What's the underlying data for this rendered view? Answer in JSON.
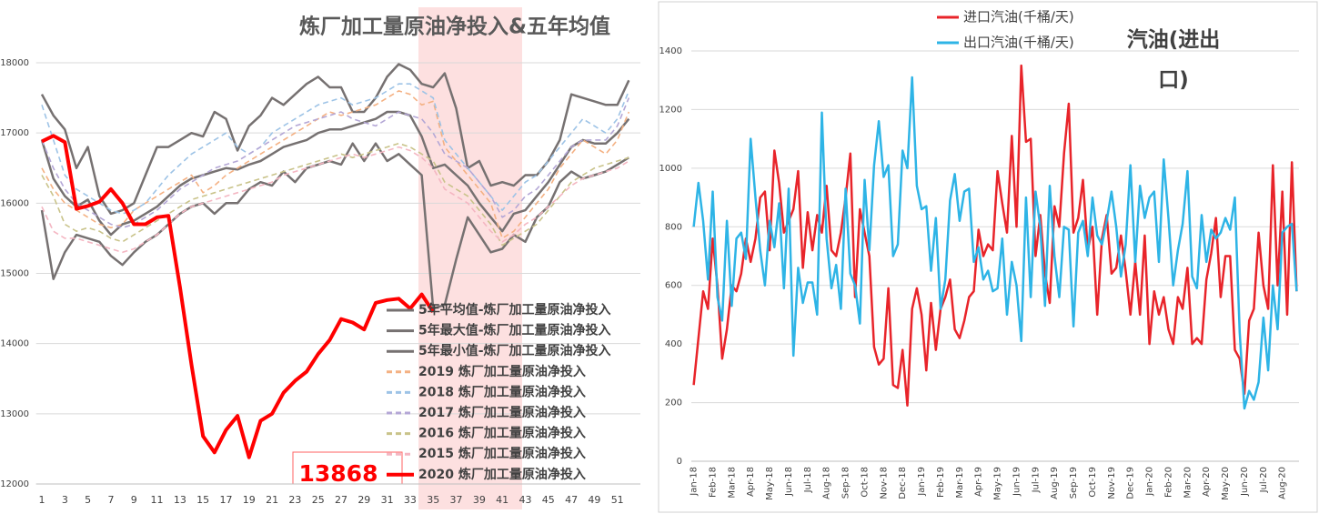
{
  "chart_data": [
    {
      "type": "line",
      "title": "炼厂加工量原油净投入&五年均值",
      "annotation": "13868",
      "x": [
        1,
        2,
        3,
        4,
        5,
        6,
        7,
        8,
        9,
        10,
        11,
        12,
        13,
        14,
        15,
        16,
        17,
        18,
        19,
        20,
        21,
        22,
        23,
        24,
        25,
        26,
        27,
        28,
        29,
        30,
        31,
        32,
        33,
        34,
        35,
        36,
        37,
        38,
        39,
        40,
        41,
        42,
        43,
        44,
        45,
        46,
        47,
        48,
        49,
        50,
        51,
        52
      ],
      "xlim": [
        0.5,
        53
      ],
      "xticks": [
        1,
        3,
        5,
        7,
        9,
        11,
        13,
        15,
        17,
        19,
        21,
        23,
        25,
        27,
        29,
        31,
        33,
        35,
        37,
        39,
        41,
        43,
        45,
        47,
        49,
        51
      ],
      "ylim": [
        12000,
        18000
      ],
      "yticks": [
        12000,
        13000,
        14000,
        15000,
        16000,
        17000,
        18000
      ],
      "grid": true,
      "series": [
        {
          "name": "5年平均值-炼厂加工量原油净投入",
          "color": "#767171",
          "style": "solid",
          "values": [
            16900,
            16350,
            16100,
            15950,
            16050,
            15750,
            15550,
            15700,
            15750,
            15850,
            15950,
            16100,
            16250,
            16350,
            16400,
            16450,
            16500,
            16480,
            16550,
            16600,
            16700,
            16800,
            16850,
            16900,
            17000,
            17050,
            17050,
            17100,
            17150,
            17200,
            17300,
            17300,
            17250,
            16950,
            16500,
            16550,
            16400,
            16250,
            16000,
            15800,
            15600,
            15850,
            15900,
            16100,
            16300,
            16550,
            16800,
            16900,
            16850,
            16850,
            17000,
            17200
          ]
        },
        {
          "name": "5年最大值-炼厂加工量原油净投入",
          "color": "#767171",
          "style": "solid",
          "values": [
            17550,
            17250,
            17050,
            16500,
            16800,
            16100,
            15850,
            15900,
            16000,
            16400,
            16800,
            16800,
            16900,
            17000,
            16950,
            17300,
            17200,
            16750,
            17100,
            17250,
            17500,
            17400,
            17550,
            17700,
            17800,
            17650,
            17650,
            17300,
            17300,
            17500,
            17800,
            17980,
            17900,
            17700,
            17650,
            17850,
            17350,
            16500,
            16600,
            16250,
            16300,
            16250,
            16400,
            16400,
            16600,
            16900,
            17550,
            17500,
            17450,
            17400,
            17400,
            17750
          ]
        },
        {
          "name": "5年最小值-炼厂加工量原油净投入",
          "color": "#767171",
          "style": "solid",
          "values": [
            15900,
            14920,
            15300,
            15550,
            15500,
            15450,
            15250,
            15120,
            15300,
            15450,
            15550,
            15700,
            15850,
            15950,
            16000,
            15850,
            16000,
            16000,
            16200,
            16300,
            16250,
            16450,
            16300,
            16500,
            16550,
            16600,
            16550,
            16850,
            16600,
            16850,
            16600,
            16700,
            16550,
            16400,
            14500,
            14550,
            15200,
            15800,
            15550,
            15300,
            15350,
            15550,
            15450,
            15800,
            15950,
            16300,
            16450,
            16350,
            16400,
            16450,
            16550,
            16650
          ]
        },
        {
          "name": "2019  炼厂加工量原油净投入",
          "color": "#f4b183",
          "style": "dashed",
          "values": [
            16500,
            16200,
            16000,
            15900,
            15800,
            15700,
            15650,
            15700,
            15900,
            16000,
            16100,
            16200,
            16300,
            16400,
            16150,
            16250,
            16400,
            16500,
            16600,
            16700,
            16800,
            16900,
            17000,
            17100,
            17200,
            17300,
            17250,
            17300,
            17350,
            17400,
            17500,
            17600,
            17550,
            17400,
            17450,
            16800,
            16600,
            16400,
            16200,
            16000,
            15500,
            15600,
            15800,
            16000,
            16200,
            16500,
            16700,
            16900,
            16800,
            16700,
            16900,
            17300
          ]
        },
        {
          "name": "2018  炼厂加工量原油净投入",
          "color": "#9dc3e6",
          "style": "dashed",
          "values": [
            17400,
            16900,
            16400,
            16200,
            16100,
            16000,
            15900,
            15850,
            15900,
            16000,
            16200,
            16400,
            16550,
            16700,
            16800,
            16900,
            17000,
            16800,
            16700,
            16800,
            17000,
            17100,
            17200,
            17300,
            17400,
            17450,
            17500,
            17400,
            17450,
            17500,
            17600,
            17700,
            17700,
            17600,
            17500,
            16900,
            16700,
            16500,
            16300,
            16100,
            15900,
            16100,
            16300,
            16400,
            16600,
            16800,
            17000,
            17200,
            17100,
            17000,
            17200,
            17600
          ]
        },
        {
          "name": "2017  炼厂加工量原油净投入",
          "color": "#b4a7d6",
          "style": "dashed",
          "values": [
            16900,
            16500,
            16200,
            16000,
            15900,
            15800,
            15700,
            15650,
            15700,
            15800,
            15900,
            16050,
            16200,
            16300,
            16400,
            16500,
            16550,
            16600,
            16700,
            16800,
            16900,
            17000,
            17100,
            17150,
            17200,
            17250,
            17300,
            17200,
            17150,
            17100,
            17200,
            17300,
            17250,
            17200,
            17000,
            16700,
            16600,
            16500,
            16300,
            16100,
            15800,
            15900,
            16100,
            16200,
            16400,
            16600,
            16800,
            16900,
            16900,
            16900,
            17100,
            17500
          ]
        },
        {
          "name": "2016  炼厂加工量原油净投入",
          "color": "#c9c38a",
          "style": "dashed",
          "values": [
            16400,
            16100,
            15700,
            15600,
            15650,
            15600,
            15500,
            15450,
            15550,
            15650,
            15750,
            15850,
            15950,
            16050,
            16100,
            16150,
            16200,
            16250,
            16300,
            16350,
            16400,
            16450,
            16500,
            16550,
            16600,
            16650,
            16700,
            16650,
            16700,
            16750,
            16800,
            16850,
            16800,
            16700,
            16600,
            16300,
            16200,
            16100,
            15900,
            15700,
            15400,
            15500,
            15600,
            15700,
            15900,
            16100,
            16300,
            16400,
            16500,
            16550,
            16600,
            16650
          ]
        },
        {
          "name": "2015  炼厂加工量原油净投入",
          "color": "#f4b6c2",
          "style": "dashed",
          "values": [
            15950,
            15600,
            15500,
            15500,
            15450,
            15400,
            15350,
            15300,
            15350,
            15450,
            15550,
            15700,
            15850,
            15950,
            16000,
            16050,
            16100,
            16150,
            16200,
            16250,
            16300,
            16400,
            16450,
            16500,
            16550,
            16600,
            16650,
            16700,
            16650,
            16700,
            16750,
            16800,
            16750,
            16650,
            16500,
            16200,
            16100,
            16000,
            15800,
            15600,
            15450,
            15550,
            15700,
            15800,
            15950,
            16100,
            16250,
            16350,
            16400,
            16450,
            16500,
            16600
          ]
        },
        {
          "name": "2020  炼厂加工量原油净投入",
          "color": "#ff0000",
          "style": "bold",
          "values": [
            16880,
            16960,
            16870,
            15920,
            15960,
            16020,
            16200,
            16000,
            15700,
            15700,
            15800,
            15820,
            14800,
            13700,
            12680,
            12450,
            12770,
            12970,
            12380,
            12900,
            13000,
            13300,
            13470,
            13600,
            13850,
            14050,
            14350,
            14300,
            14200,
            14580,
            14620,
            14640,
            14500,
            14700,
            14450,
            null,
            null,
            null,
            null,
            null,
            null,
            null,
            null,
            null,
            null,
            null,
            null,
            null,
            null,
            null,
            null,
            null
          ]
        }
      ]
    },
    {
      "type": "line",
      "title": "汽油(进出口)",
      "categories": [
        "Jan-18",
        null,
        null,
        null,
        "Feb-18",
        null,
        null,
        null,
        "Mar-18",
        null,
        null,
        null,
        "Apr-18",
        null,
        null,
        null,
        "May-18",
        null,
        null,
        null,
        "Jun-18",
        null,
        null,
        null,
        "Jul-18",
        null,
        null,
        null,
        "Aug-18",
        null,
        null,
        null,
        "Sep-18",
        null,
        null,
        null,
        "Oct-18",
        null,
        null,
        null,
        "Nov-18",
        null,
        null,
        null,
        "Dec-18",
        null,
        null,
        null,
        "Jan-19",
        null,
        null,
        null,
        "Feb-19",
        null,
        null,
        null,
        "Mar-19",
        null,
        null,
        null,
        "Apr-19",
        null,
        null,
        null,
        "May-19",
        null,
        null,
        null,
        "Jun-19",
        null,
        null,
        null,
        "Jul-19",
        null,
        null,
        null,
        "Aug-19",
        null,
        null,
        null,
        "Sep-19",
        null,
        null,
        null,
        "Oct-19",
        null,
        null,
        null,
        "Nov-19",
        null,
        null,
        null,
        "Dec-19",
        null,
        null,
        null,
        "Jan-20",
        null,
        null,
        null,
        "Feb-20",
        null,
        null,
        null,
        "Mar-20",
        null,
        null,
        null,
        "Apr-20",
        null,
        null,
        null,
        "May-20",
        null,
        null,
        null,
        "Jun-20",
        null,
        null,
        null,
        "Jul-20",
        null,
        null,
        null,
        "Aug-20",
        null,
        null,
        null
      ],
      "ylim": [
        0,
        1400
      ],
      "yticks": [
        0,
        200,
        400,
        600,
        800,
        1000,
        1200,
        1400
      ],
      "grid": true,
      "series": [
        {
          "name": "进口汽油(千桶/天)",
          "color": "#e8242a",
          "style": "solid",
          "values": [
            260,
            420,
            580,
            520,
            760,
            600,
            350,
            450,
            600,
            580,
            640,
            760,
            680,
            760,
            900,
            920,
            720,
            1060,
            950,
            780,
            820,
            860,
            990,
            660,
            850,
            720,
            840,
            780,
            940,
            720,
            700,
            780,
            900,
            1050,
            560,
            860,
            780,
            700,
            390,
            330,
            350,
            590,
            260,
            250,
            380,
            190,
            520,
            590,
            500,
            310,
            540,
            380,
            520,
            560,
            620,
            450,
            420,
            480,
            560,
            580,
            790,
            700,
            740,
            720,
            990,
            880,
            780,
            1110,
            800,
            1350,
            1090,
            1100,
            700,
            840,
            640,
            540,
            870,
            800,
            1050,
            1220,
            780,
            830,
            960,
            720,
            800,
            500,
            760,
            840,
            640,
            660,
            770,
            650,
            500,
            680,
            500,
            770,
            400,
            580,
            500,
            560,
            450,
            400,
            560,
            520,
            660,
            400,
            420,
            400,
            620,
            710,
            830,
            560,
            700,
            700,
            380,
            350,
            230,
            480,
            520,
            780,
            600,
            520,
            1010,
            600,
            920,
            500,
            1020,
            580
          ]
        },
        {
          "name": "出口汽油(千桶/天)",
          "color": "#2eb4e6",
          "style": "solid",
          "values": [
            800,
            950,
            820,
            620,
            920,
            560,
            480,
            820,
            530,
            760,
            780,
            690,
            1100,
            900,
            720,
            600,
            820,
            730,
            880,
            590,
            930,
            360,
            660,
            540,
            610,
            610,
            500,
            1190,
            760,
            590,
            670,
            520,
            930,
            640,
            600,
            470,
            960,
            720,
            1010,
            1160,
            970,
            1010,
            700,
            740,
            1060,
            1000,
            1310,
            940,
            860,
            870,
            650,
            830,
            520,
            620,
            890,
            980,
            820,
            920,
            930,
            680,
            730,
            620,
            650,
            580,
            590,
            760,
            500,
            680,
            600,
            410,
            900,
            560,
            920,
            800,
            530,
            940,
            700,
            560,
            800,
            790,
            460,
            780,
            820,
            700,
            900,
            770,
            740,
            820,
            920,
            800,
            630,
            740,
            1010,
            680,
            940,
            830,
            900,
            920,
            680,
            1030,
            830,
            600,
            720,
            810,
            990,
            630,
            590,
            840,
            680,
            790,
            760,
            780,
            830,
            790,
            900,
            440,
            180,
            240,
            210,
            270,
            490,
            310,
            600,
            450,
            780,
            800,
            810,
            580
          ]
        }
      ]
    }
  ]
}
